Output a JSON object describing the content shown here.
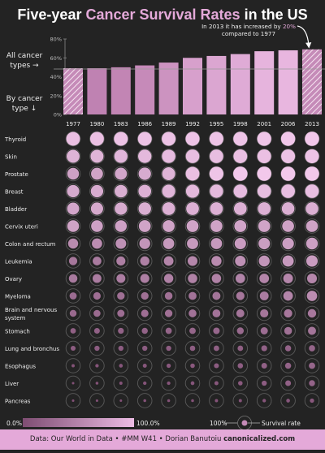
{
  "title": {
    "part1": "Five-year ",
    "part2": "Cancer Survival Rates",
    "part3": " in the US"
  },
  "annotation": {
    "pre": "In 2013 it has increased by ",
    "highlight": "20%",
    "post": "compared to 1977"
  },
  "side_labels": {
    "all_line1": "All cancer",
    "all_line2": "types →",
    "by_line1": "By cancer",
    "by_line2": "type ↓"
  },
  "legend": {
    "min_label": "0.0%",
    "max_label": "100.0%",
    "ring_label": "100%",
    "rate_label": "Survival rate"
  },
  "footer": {
    "source": "Data: Our World in Data • #MM W41 • Dorian Banutoiu ",
    "site": "canonicalized.com"
  },
  "colors": {
    "background": "#232323",
    "bar_low": "#b777a8",
    "bar_high": "#ecbce4",
    "accent": "#e4a9d9",
    "ring": "#5a5a5a"
  },
  "chart_data": [
    {
      "type": "bar",
      "title": "All cancer types",
      "categories": [
        "1977",
        "1980",
        "1983",
        "1986",
        "1989",
        "1992",
        "1995",
        "1998",
        "2001",
        "2006",
        "2013"
      ],
      "values": [
        49,
        49,
        50,
        52,
        55,
        60,
        62,
        64,
        67,
        68,
        69
      ],
      "ylim": [
        0,
        80
      ],
      "yticks": [
        "0%",
        "20%",
        "40%",
        "60%",
        "80%"
      ],
      "hatched": [
        "1977",
        "2013"
      ],
      "grid": false
    },
    {
      "type": "heatmap",
      "title": "By cancer type",
      "columns": [
        "1977",
        "1980",
        "1983",
        "1986",
        "1989",
        "1992",
        "1995",
        "1998",
        "2001",
        "2006",
        "2013"
      ],
      "rows": [
        "Thyroid",
        "Skin",
        "Prostate",
        "Breast",
        "Bladder",
        "Cervix uteri",
        "Colon and rectum",
        "Leukemia",
        "Ovary",
        "Myeloma",
        "Brain and nervous system",
        "Stomach",
        "Lung and bronchus",
        "Esophagus",
        "Liver",
        "Pancreas"
      ],
      "values": [
        [
          92,
          93,
          94,
          94,
          94,
          95,
          95,
          96,
          97,
          98,
          99
        ],
        [
          82,
          83,
          85,
          87,
          89,
          90,
          91,
          92,
          93,
          94,
          95
        ],
        [
          68,
          70,
          72,
          76,
          83,
          92,
          96,
          99,
          99,
          99,
          99
        ],
        [
          75,
          76,
          78,
          80,
          84,
          86,
          87,
          89,
          90,
          91,
          91
        ],
        [
          72,
          74,
          76,
          78,
          80,
          80,
          80,
          80,
          80,
          79,
          79
        ],
        [
          69,
          68,
          68,
          70,
          70,
          70,
          70,
          71,
          70,
          69,
          69
        ],
        [
          50,
          52,
          55,
          58,
          61,
          62,
          62,
          64,
          65,
          66,
          67
        ],
        [
          34,
          37,
          40,
          42,
          45,
          47,
          50,
          55,
          58,
          62,
          64
        ],
        [
          36,
          38,
          39,
          40,
          42,
          43,
          43,
          44,
          45,
          46,
          47
        ],
        [
          25,
          27,
          28,
          28,
          29,
          31,
          32,
          34,
          38,
          45,
          52
        ],
        [
          23,
          24,
          26,
          27,
          28,
          30,
          31,
          32,
          33,
          34,
          35
        ],
        [
          15,
          16,
          17,
          18,
          19,
          20,
          21,
          23,
          26,
          29,
          32
        ],
        [
          12,
          13,
          13,
          13,
          13,
          14,
          15,
          15,
          17,
          18,
          19
        ],
        [
          5,
          6,
          7,
          8,
          9,
          10,
          12,
          14,
          16,
          18,
          20
        ],
        [
          3,
          4,
          5,
          6,
          6,
          7,
          8,
          10,
          13,
          16,
          18
        ],
        [
          3,
          3,
          3,
          4,
          4,
          4,
          5,
          5,
          6,
          7,
          9
        ]
      ]
    }
  ]
}
